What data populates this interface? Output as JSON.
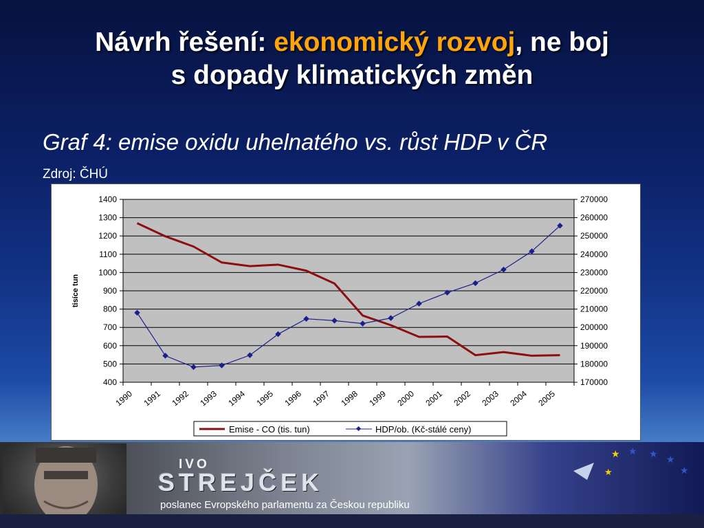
{
  "slide": {
    "title_part1": "Návrh řešení: ",
    "title_accent": "ekonomický rozvoj",
    "title_part2": ", ne boj",
    "title_line2": "s dopady klimatických změn",
    "subtitle": "Graf 4: emise oxidu uhelnatého vs. růst HDP v ČR",
    "source": "Zdroj: ČHÚ"
  },
  "banner": {
    "first_name": "IVO",
    "last_name": "STREJČEK",
    "role": "poslanec Evropského parlamentu za Českou republiku"
  },
  "colors": {
    "accent": "#ffa40b",
    "series_emise": "#8b0f0f",
    "series_hdp": "#1a1f8c",
    "plot_bg": "#c0c0c0"
  },
  "chart_data": {
    "type": "line",
    "title": "",
    "xlabel": "",
    "ylabel": "tisíce tun",
    "ylabel_right": "",
    "x": [
      "1990",
      "1991",
      "1992",
      "1993",
      "1994",
      "1995",
      "1996",
      "1997",
      "1998",
      "1999",
      "2000",
      "2001",
      "2002",
      "2003",
      "2004",
      "2005"
    ],
    "ylim": [
      400,
      1400
    ],
    "yticks": [
      "400",
      "500",
      "600",
      "700",
      "800",
      "900",
      "1000",
      "1100",
      "1200",
      "1300",
      "1400"
    ],
    "ylim_right": [
      170000,
      270000
    ],
    "yticks_right": [
      "170000",
      "180000",
      "190000",
      "200000",
      "210000",
      "220000",
      "230000",
      "240000",
      "250000",
      "260000",
      "270000"
    ],
    "grid": true,
    "legend_position": "bottom",
    "series": [
      {
        "name": "Emise - CO (tis. tun)",
        "axis": "left",
        "marker": "none",
        "values": [
          1270,
          1198,
          1142,
          1055,
          1035,
          1043,
          1010,
          940,
          765,
          712,
          648,
          650,
          548,
          565,
          545,
          548
        ]
      },
      {
        "name": "HDP/ob. (Kč-stálé ceny)",
        "axis": "right",
        "marker": "diamond",
        "values": [
          208000,
          184500,
          178300,
          179200,
          184800,
          196300,
          204700,
          203700,
          202100,
          205100,
          213000,
          219000,
          224200,
          231600,
          241600,
          255600
        ]
      }
    ]
  }
}
